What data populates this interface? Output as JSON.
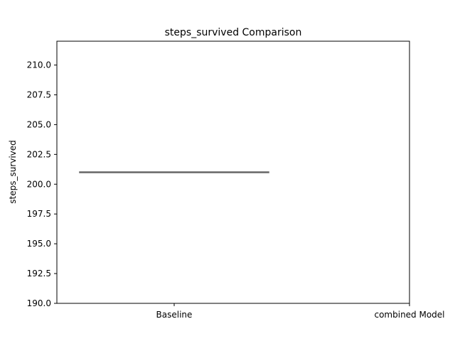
{
  "chart_data": {
    "type": "box",
    "title": "steps_survived Comparison",
    "xlabel": "",
    "ylabel": "steps_survived",
    "categories": [
      "Baseline",
      "combined Model"
    ],
    "ylim": [
      190,
      212
    ],
    "y_ticks": [
      "190.0",
      "192.5",
      "195.0",
      "197.5",
      "200.0",
      "202.5",
      "205.0",
      "207.5",
      "210.0"
    ],
    "y_tick_values": [
      190,
      192.5,
      195,
      197.5,
      200,
      202.5,
      205,
      207.5,
      210
    ],
    "boxes": [
      {
        "category": "Baseline",
        "min": 201,
        "q1": 201,
        "median": 201,
        "q3": 201,
        "max": 201
      }
    ],
    "grid": false,
    "colors": {
      "box_line": "#666666",
      "axis": "#000000"
    }
  }
}
